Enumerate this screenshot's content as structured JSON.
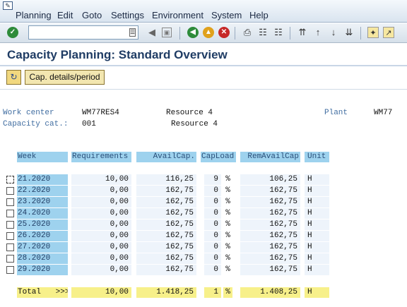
{
  "menu": {
    "items": [
      "Planning",
      "Edit",
      "Goto",
      "Settings",
      "Environment",
      "System",
      "Help"
    ]
  },
  "toolbar": {
    "command_value": "",
    "icons": [
      "enter-icon",
      "save-icon",
      "back-icon",
      "exit-icon",
      "cancel-icon",
      "print-icon",
      "find-icon",
      "find-next-icon",
      "first-page-icon",
      "previous-page-icon",
      "next-page-icon",
      "last-page-icon",
      "create-session-icon",
      "shortcut-icon"
    ]
  },
  "title": "Capacity Planning: Standard Overview",
  "app_toolbar": {
    "cap_details_label": "Cap. details/period"
  },
  "header": {
    "work_center_label": "Work center",
    "work_center_value": "WM77RES4",
    "work_center_desc": "Resource 4",
    "plant_label": "Plant",
    "plant_value": "WM77",
    "capacity_cat_label": "Capacity cat.:",
    "capacity_cat_value": "001",
    "capacity_cat_desc": "Resource 4"
  },
  "table": {
    "columns": [
      "Week",
      "Requirements",
      "AvailCap.",
      "CapLoad",
      "RemAvailCap",
      "Unit"
    ],
    "rows": [
      {
        "week": "21.2020",
        "req": "10,00",
        "avail": "116,25",
        "load": "9",
        "pct": "%",
        "rem": "106,25",
        "unit": "H"
      },
      {
        "week": "22.2020",
        "req": "0,00",
        "avail": "162,75",
        "load": "0",
        "pct": "%",
        "rem": "162,75",
        "unit": "H"
      },
      {
        "week": "23.2020",
        "req": "0,00",
        "avail": "162,75",
        "load": "0",
        "pct": "%",
        "rem": "162,75",
        "unit": "H"
      },
      {
        "week": "24.2020",
        "req": "0,00",
        "avail": "162,75",
        "load": "0",
        "pct": "%",
        "rem": "162,75",
        "unit": "H"
      },
      {
        "week": "25.2020",
        "req": "0,00",
        "avail": "162,75",
        "load": "0",
        "pct": "%",
        "rem": "162,75",
        "unit": "H"
      },
      {
        "week": "26.2020",
        "req": "0,00",
        "avail": "162,75",
        "load": "0",
        "pct": "%",
        "rem": "162,75",
        "unit": "H"
      },
      {
        "week": "27.2020",
        "req": "0,00",
        "avail": "162,75",
        "load": "0",
        "pct": "%",
        "rem": "162,75",
        "unit": "H"
      },
      {
        "week": "28.2020",
        "req": "0,00",
        "avail": "162,75",
        "load": "0",
        "pct": "%",
        "rem": "162,75",
        "unit": "H"
      },
      {
        "week": "29.2020",
        "req": "0,00",
        "avail": "162,75",
        "load": "0",
        "pct": "%",
        "rem": "162,75",
        "unit": "H"
      }
    ],
    "total": {
      "label": "Total",
      "arrows": ">>>",
      "req": "10,00",
      "avail": "1.418,25",
      "load": "1",
      "pct": "%",
      "rem": "1.408,25",
      "unit": "H"
    }
  },
  "colors": {
    "title": "#1f3c64",
    "week_cell": "#9ed2ee",
    "value_cell": "#eef4fb",
    "total_row": "#f7f08a",
    "label_text": "#3f6ca0"
  }
}
